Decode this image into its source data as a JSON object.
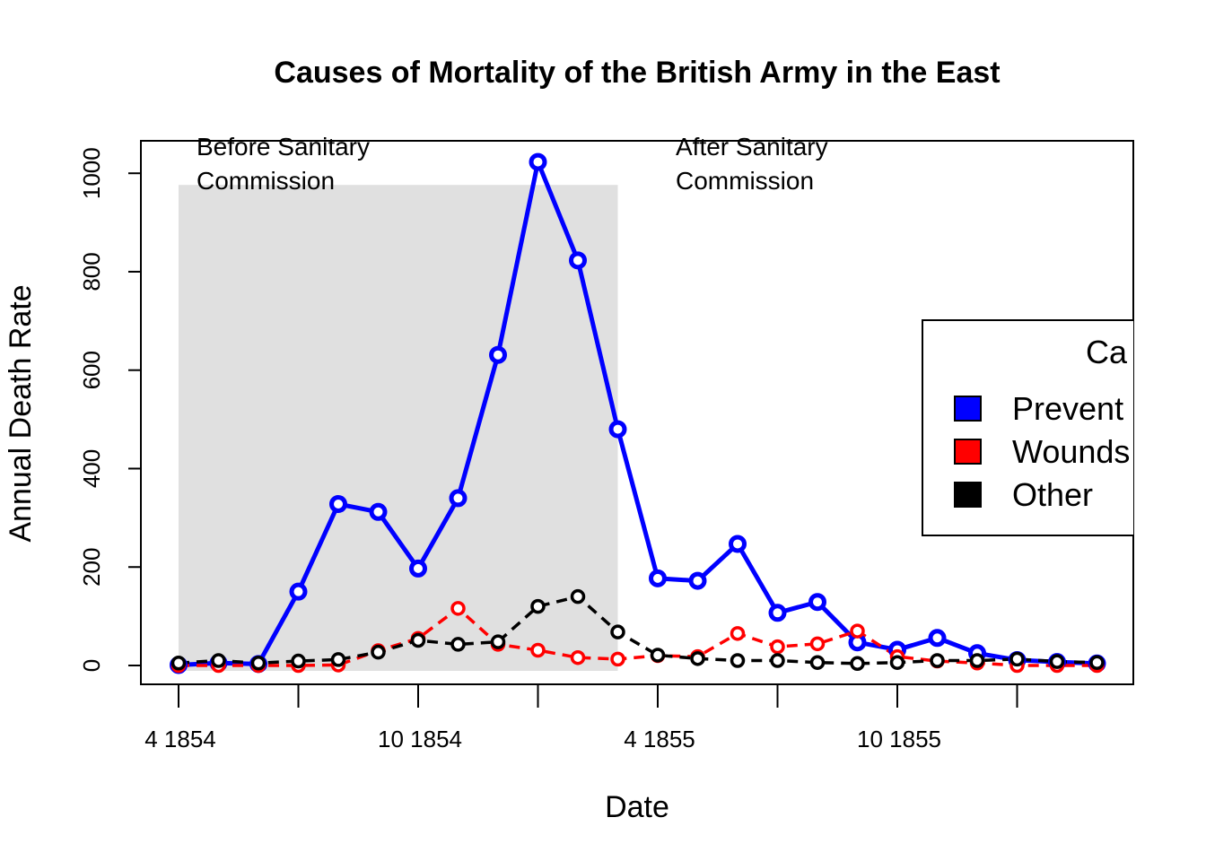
{
  "chart_data": {
    "type": "line",
    "title": "Causes of Mortality of the British Army in the East",
    "xlabel": "Date",
    "ylabel": "Annual Death Rate",
    "ylim": [
      0,
      1000
    ],
    "y_ticks": [
      0,
      200,
      400,
      600,
      800,
      1000
    ],
    "x_tick_labels": [
      "4 1854",
      "",
      "10 1854",
      "",
      "4 1855",
      "",
      "10 1855",
      ""
    ],
    "x": [
      "1854-04",
      "1854-05",
      "1854-06",
      "1854-07",
      "1854-08",
      "1854-09",
      "1854-10",
      "1854-11",
      "1854-12",
      "1855-01",
      "1855-02",
      "1855-03",
      "1855-04",
      "1855-05",
      "1855-06",
      "1855-07",
      "1855-08",
      "1855-09",
      "1855-10",
      "1855-11",
      "1855-12",
      "1856-01",
      "1856-02",
      "1856-03"
    ],
    "series": [
      {
        "name": "Preventable",
        "color": "#0000ff",
        "line": "solid",
        "values": [
          1,
          5,
          3,
          150,
          328,
          312,
          197,
          340,
          631,
          1023,
          823,
          480,
          177,
          172,
          247,
          107,
          129,
          47,
          32,
          56,
          25,
          11,
          7,
          4
        ]
      },
      {
        "name": "Wounds",
        "color": "#ff0000",
        "line": "dashed",
        "values": [
          0,
          0,
          0,
          0,
          1,
          30,
          55,
          116,
          43,
          31,
          16,
          13,
          20,
          18,
          65,
          38,
          44,
          70,
          18,
          9,
          5,
          0,
          0,
          0
        ]
      },
      {
        "name": "Other",
        "color": "#000000",
        "line": "dashed",
        "values": [
          5,
          10,
          5,
          9,
          12,
          27,
          51,
          43,
          48,
          120,
          140,
          68,
          21,
          14,
          10,
          10,
          6,
          4,
          6,
          10,
          10,
          13,
          8,
          6
        ]
      }
    ],
    "shaded_region": {
      "from": "1854-04",
      "to": "1855-03"
    },
    "annotations": [
      {
        "lines": [
          "Before Sanitary",
          "Commission"
        ],
        "x": "1854-04"
      },
      {
        "lines": [
          "After Sanitary",
          "Commission"
        ],
        "x": "1855-04"
      }
    ],
    "legend": {
      "title": "Ca",
      "position": "right",
      "entries": [
        {
          "label": "Prevent",
          "color": "#0000ff"
        },
        {
          "label": "Wounds",
          "color": "#ff0000"
        },
        {
          "label": "Other",
          "color": "#000000"
        }
      ]
    },
    "grid": false
  }
}
